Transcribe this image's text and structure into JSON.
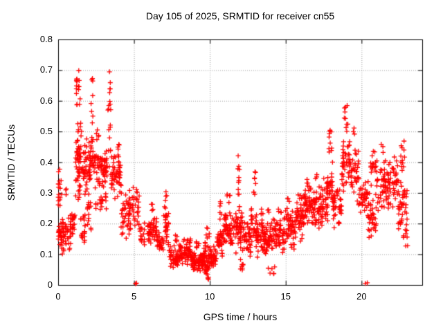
{
  "title": "Day 105 of 2025, SRMTID for receiver cn55",
  "chart_data": {
    "type": "scatter",
    "title": "Day 105 of 2025, SRMTID for receiver cn55",
    "xlabel": "GPS time / hours",
    "ylabel": "SRMTID / TECUs",
    "xlim": [
      0,
      24
    ],
    "ylim": [
      0,
      0.8
    ],
    "xticks": [
      0,
      5,
      10,
      15,
      20
    ],
    "xtick_labels": [
      "0",
      "5",
      "10",
      "15",
      "20"
    ],
    "yticks": [
      0,
      0.1,
      0.2,
      0.3,
      0.4,
      0.5,
      0.6,
      0.7,
      0.8
    ],
    "ytick_labels": [
      "0",
      "0.1",
      "0.2",
      "0.3",
      "0.4",
      "0.5",
      "0.6",
      "0.7",
      "0.8"
    ],
    "grid": true,
    "legend": "none",
    "marker": "plus",
    "marker_color": "#ff0000",
    "grid_color": "#999999",
    "axis_color": "#000000",
    "seed": 105,
    "clusters_format": [
      "x_start_hour",
      "x_end_hour",
      "y_min_TECU",
      "y_max_TECU",
      "n_points",
      "bias(u=uniform,m=mid-weighted)"
    ],
    "clusters": [
      [
        0.0,
        0.3,
        0.1,
        0.22,
        28,
        "m"
      ],
      [
        0.0,
        0.25,
        0.25,
        0.345,
        12,
        "u"
      ],
      [
        0.02,
        0.12,
        0.3,
        0.385,
        4,
        "u"
      ],
      [
        0.3,
        0.85,
        0.1,
        0.24,
        40,
        "m"
      ],
      [
        0.5,
        0.62,
        0.27,
        0.335,
        3,
        "u"
      ],
      [
        0.85,
        1.12,
        0.14,
        0.27,
        18,
        "m"
      ],
      [
        1.15,
        1.55,
        0.25,
        0.55,
        60,
        "m"
      ],
      [
        1.2,
        1.45,
        0.55,
        0.705,
        16,
        "u"
      ],
      [
        1.45,
        1.78,
        0.1,
        0.25,
        20,
        "m"
      ],
      [
        1.6,
        2.1,
        0.28,
        0.5,
        45,
        "m"
      ],
      [
        2.1,
        2.35,
        0.33,
        0.5,
        25,
        "m"
      ],
      [
        2.15,
        2.3,
        0.52,
        0.68,
        8,
        "u"
      ],
      [
        1.9,
        2.2,
        0.17,
        0.3,
        15,
        "m"
      ],
      [
        2.35,
        3.25,
        0.3,
        0.47,
        70,
        "m"
      ],
      [
        2.5,
        2.72,
        0.47,
        0.53,
        5,
        "u"
      ],
      [
        2.4,
        3.2,
        0.24,
        0.3,
        18,
        "u"
      ],
      [
        3.28,
        3.47,
        0.36,
        0.575,
        12,
        "u"
      ],
      [
        3.3,
        3.45,
        0.58,
        0.72,
        8,
        "u"
      ],
      [
        3.5,
        4.15,
        0.28,
        0.435,
        55,
        "m"
      ],
      [
        3.9,
        4.1,
        0.44,
        0.465,
        4,
        "u"
      ],
      [
        4.15,
        4.75,
        0.14,
        0.32,
        45,
        "m"
      ],
      [
        4.75,
        5.35,
        0.17,
        0.335,
        35,
        "m"
      ],
      [
        5.35,
        5.78,
        0.12,
        0.22,
        16,
        "m"
      ],
      [
        5.9,
        6.5,
        0.115,
        0.235,
        45,
        "m"
      ],
      [
        6.1,
        6.32,
        0.24,
        0.265,
        4,
        "u"
      ],
      [
        6.5,
        6.95,
        0.09,
        0.18,
        30,
        "m"
      ],
      [
        6.95,
        7.3,
        0.12,
        0.26,
        30,
        "m"
      ],
      [
        7.05,
        7.22,
        0.27,
        0.315,
        4,
        "u"
      ],
      [
        7.3,
        8.25,
        0.05,
        0.135,
        70,
        "m"
      ],
      [
        7.7,
        7.92,
        0.14,
        0.165,
        5,
        "u"
      ],
      [
        8.25,
        8.75,
        0.06,
        0.16,
        45,
        "m"
      ],
      [
        8.75,
        9.55,
        0.04,
        0.115,
        75,
        "m"
      ],
      [
        9.1,
        9.32,
        0.12,
        0.15,
        6,
        "u"
      ],
      [
        9.55,
        10.15,
        0.03,
        0.145,
        65,
        "m"
      ],
      [
        9.75,
        9.97,
        0.15,
        0.19,
        6,
        "u"
      ],
      [
        9.8,
        9.95,
        0.015,
        0.03,
        4,
        "u"
      ],
      [
        10.2,
        10.45,
        0.05,
        0.14,
        18,
        "m"
      ],
      [
        10.45,
        10.9,
        0.08,
        0.2,
        35,
        "m"
      ],
      [
        10.55,
        10.76,
        0.21,
        0.275,
        6,
        "u"
      ],
      [
        10.9,
        11.6,
        0.1,
        0.25,
        55,
        "m"
      ],
      [
        11.1,
        11.32,
        0.26,
        0.3,
        5,
        "u"
      ],
      [
        11.6,
        12.15,
        0.1,
        0.28,
        45,
        "m"
      ],
      [
        11.85,
        11.98,
        0.29,
        0.425,
        10,
        "u"
      ],
      [
        12.0,
        12.2,
        0.04,
        0.095,
        8,
        "u"
      ],
      [
        12.15,
        12.7,
        0.09,
        0.22,
        40,
        "m"
      ],
      [
        12.7,
        13.1,
        0.12,
        0.28,
        30,
        "m"
      ],
      [
        12.88,
        13.03,
        0.29,
        0.385,
        8,
        "u"
      ],
      [
        13.1,
        13.65,
        0.08,
        0.22,
        45,
        "m"
      ],
      [
        13.35,
        13.52,
        0.23,
        0.255,
        4,
        "u"
      ],
      [
        13.65,
        14.15,
        0.09,
        0.22,
        40,
        "m"
      ],
      [
        13.75,
        13.92,
        0.23,
        0.25,
        3,
        "u"
      ],
      [
        13.85,
        14.3,
        0.035,
        0.06,
        6,
        "u"
      ],
      [
        14.15,
        14.9,
        0.1,
        0.225,
        55,
        "m"
      ],
      [
        14.5,
        14.72,
        0.23,
        0.255,
        4,
        "u"
      ],
      [
        14.9,
        15.6,
        0.1,
        0.26,
        50,
        "m"
      ],
      [
        15.1,
        15.32,
        0.265,
        0.285,
        3,
        "u"
      ],
      [
        15.6,
        16.2,
        0.14,
        0.31,
        50,
        "m"
      ],
      [
        16.2,
        16.7,
        0.19,
        0.345,
        50,
        "m"
      ],
      [
        16.7,
        17.4,
        0.17,
        0.33,
        55,
        "m"
      ],
      [
        16.9,
        17.12,
        0.34,
        0.37,
        3,
        "u"
      ],
      [
        17.4,
        17.8,
        0.19,
        0.35,
        30,
        "m"
      ],
      [
        17.75,
        18.1,
        0.25,
        0.42,
        25,
        "m"
      ],
      [
        17.85,
        18.05,
        0.42,
        0.52,
        10,
        "u"
      ],
      [
        18.1,
        18.7,
        0.17,
        0.34,
        40,
        "m"
      ],
      [
        18.7,
        19.25,
        0.3,
        0.5,
        45,
        "m"
      ],
      [
        18.85,
        19.1,
        0.5,
        0.585,
        10,
        "u"
      ],
      [
        19.25,
        19.8,
        0.27,
        0.475,
        35,
        "m"
      ],
      [
        19.45,
        19.58,
        0.48,
        0.525,
        3,
        "u"
      ],
      [
        19.8,
        20.45,
        0.2,
        0.38,
        40,
        "m"
      ],
      [
        20.45,
        21.0,
        0.14,
        0.31,
        35,
        "m"
      ],
      [
        20.6,
        21.1,
        0.32,
        0.46,
        20,
        "m"
      ],
      [
        21.0,
        21.7,
        0.22,
        0.42,
        45,
        "m"
      ],
      [
        21.2,
        21.42,
        0.43,
        0.465,
        3,
        "u"
      ],
      [
        21.7,
        22.4,
        0.24,
        0.425,
        50,
        "m"
      ],
      [
        22.4,
        23.0,
        0.15,
        0.36,
        45,
        "m"
      ],
      [
        22.55,
        22.85,
        0.37,
        0.47,
        12,
        "u"
      ],
      [
        22.9,
        23.05,
        0.12,
        0.17,
        4,
        "u"
      ]
    ],
    "outlier_points": [
      [
        5.1,
        0.004
      ],
      [
        5.17,
        0.006
      ],
      [
        20.25,
        0.005
      ],
      [
        20.38,
        0.007
      ]
    ]
  }
}
